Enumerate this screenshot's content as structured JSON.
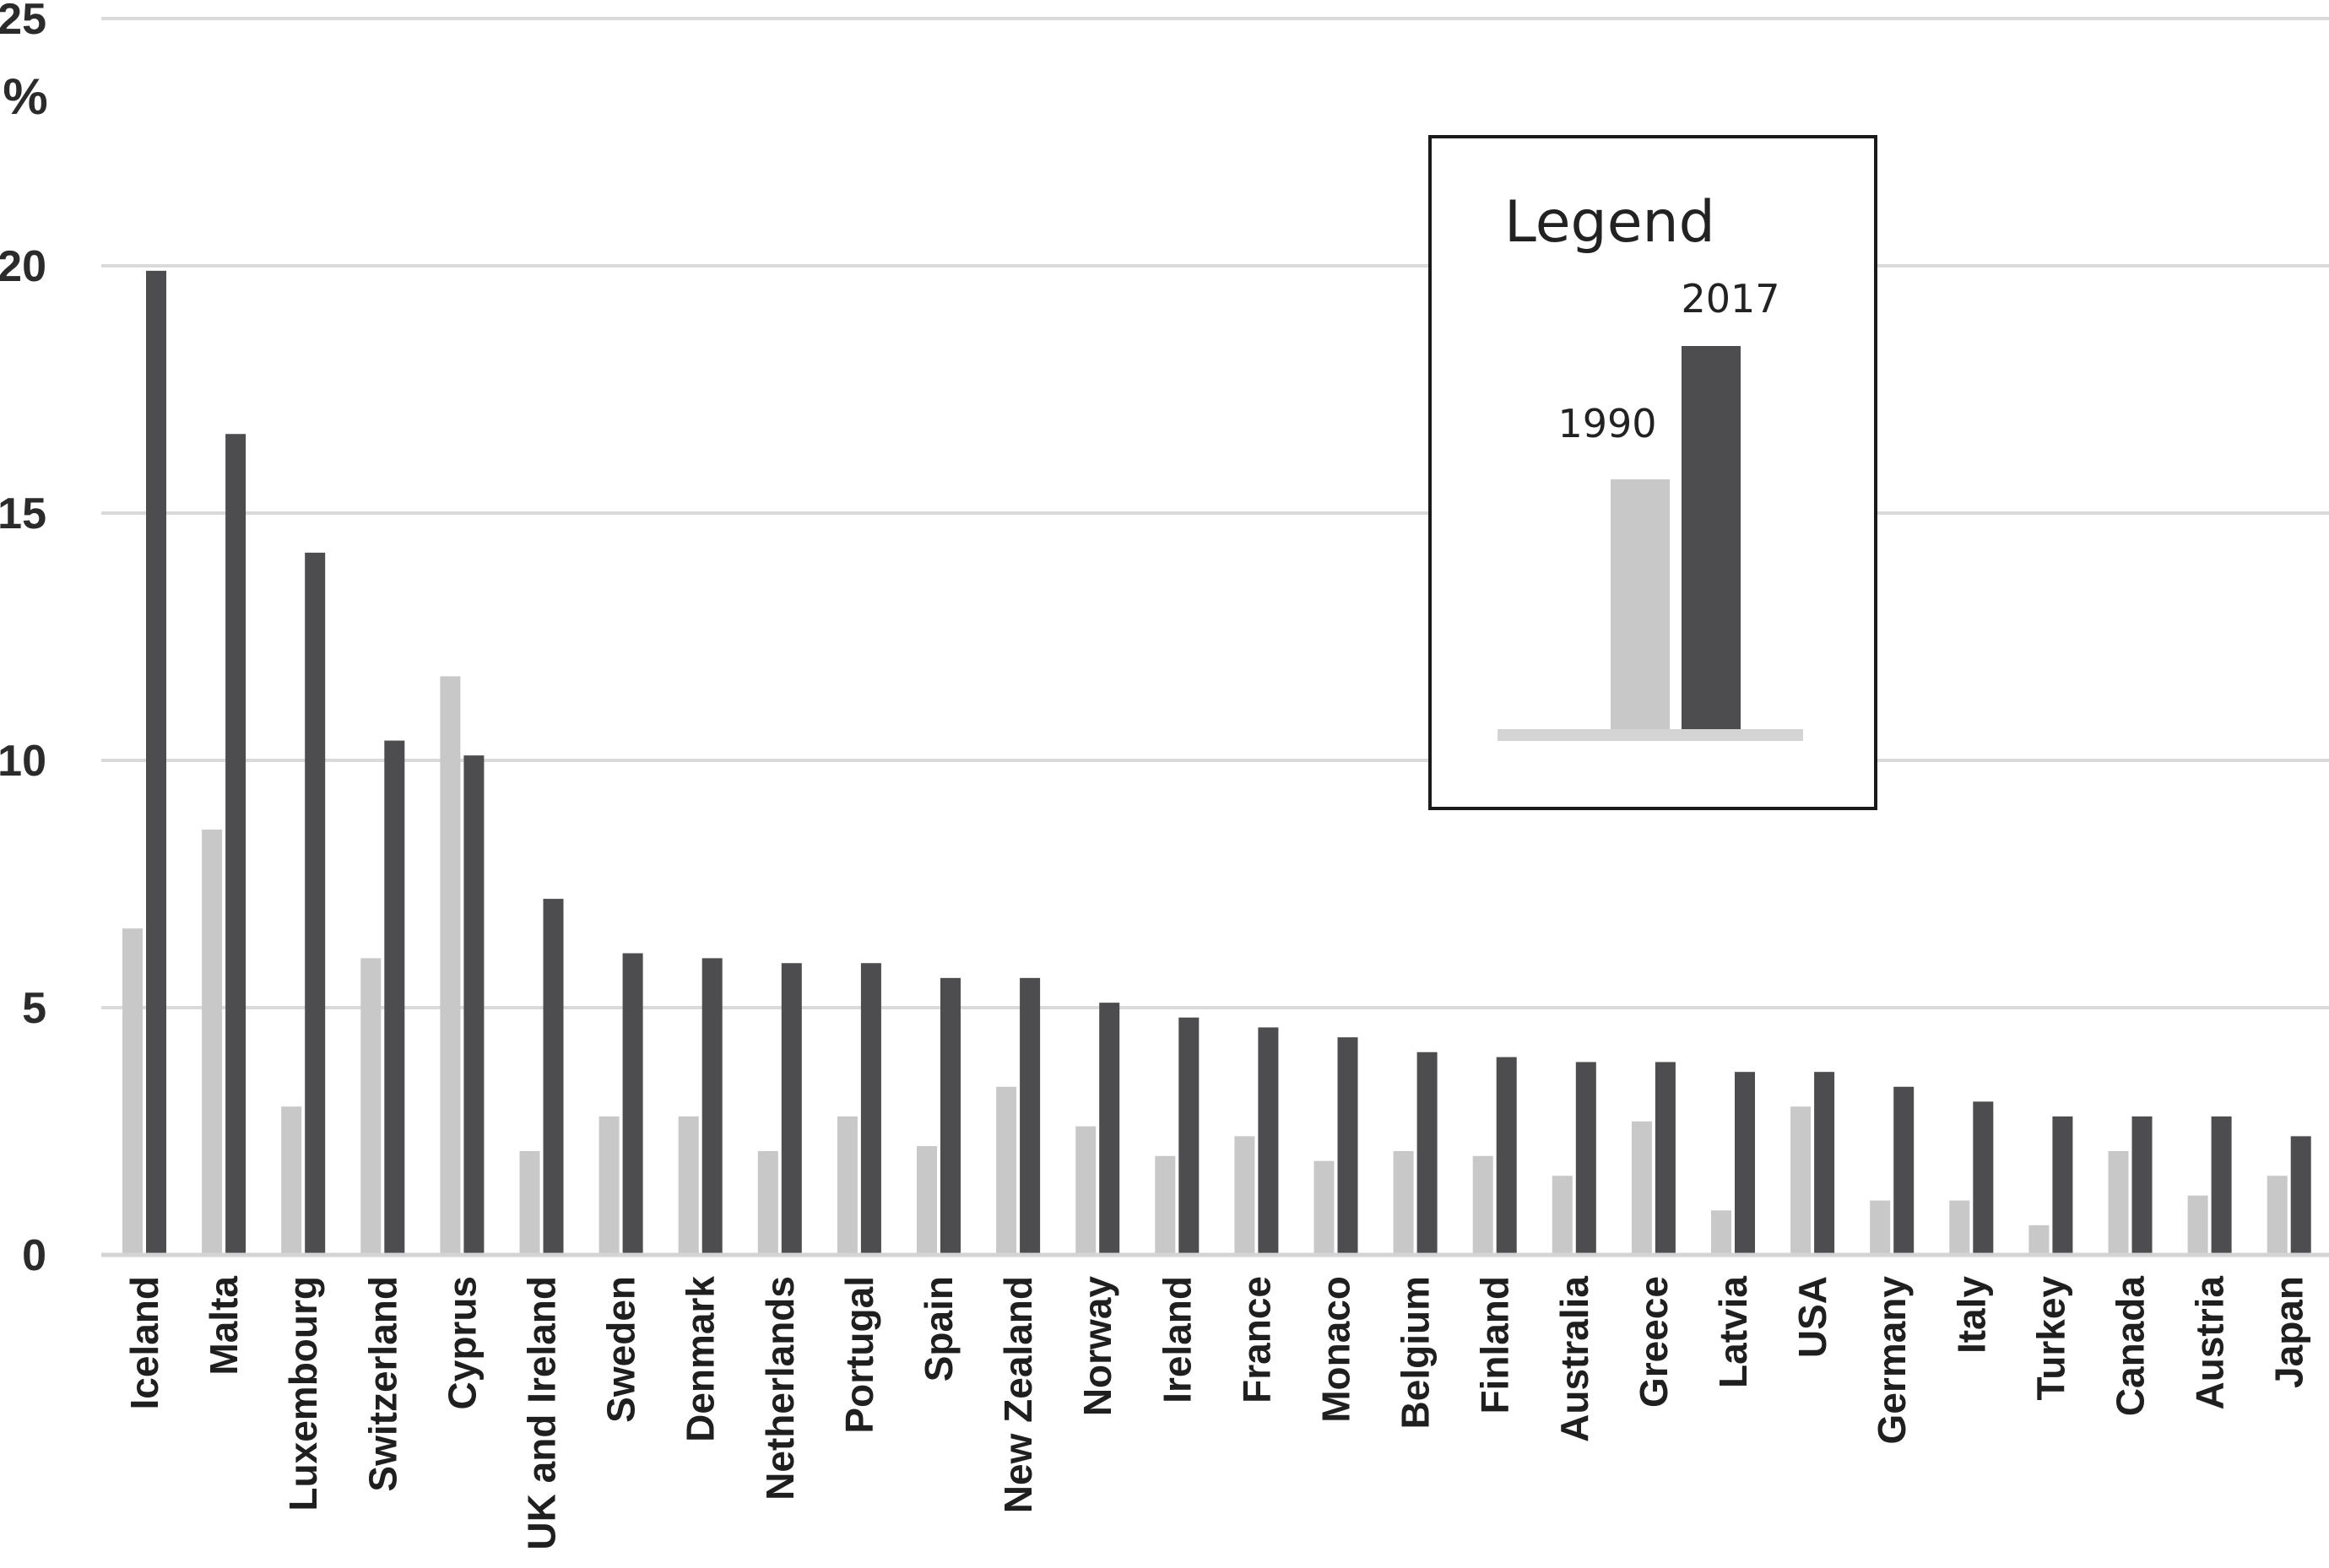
{
  "chart_data": {
    "type": "bar",
    "categories": [
      "Iceland",
      "Malta",
      "Luxembourg",
      "Switzerland",
      "Cyprus",
      "UK and Ireland",
      "Sweden",
      "Denmark",
      "Netherlands",
      "Portugal",
      "Spain",
      "New Zealand",
      "Norway",
      "Ireland",
      "France",
      "Monaco",
      "Belgium",
      "Finland",
      "Australia",
      "Greece",
      "Latvia",
      "USA",
      "Germany",
      "Italy",
      "Turkey",
      "Canada",
      "Austria",
      "Japan"
    ],
    "series": [
      {
        "name": "1990",
        "color": "#c8c8c8",
        "values": [
          6.6,
          8.6,
          3.0,
          6.0,
          11.7,
          2.1,
          2.8,
          2.8,
          2.1,
          2.8,
          2.2,
          3.4,
          2.6,
          2.0,
          2.4,
          1.9,
          2.1,
          2.0,
          1.6,
          2.7,
          0.9,
          3.0,
          1.1,
          1.1,
          0.6,
          2.1,
          1.2,
          1.6
        ]
      },
      {
        "name": "2017",
        "color": "#4d4d4f",
        "values": [
          19.9,
          16.6,
          14.2,
          10.4,
          10.1,
          7.2,
          6.1,
          6.0,
          5.9,
          5.9,
          5.6,
          5.6,
          5.1,
          4.8,
          4.6,
          4.4,
          4.1,
          4.0,
          3.9,
          3.9,
          3.7,
          3.7,
          3.4,
          3.1,
          2.8,
          2.8,
          2.8,
          2.4
        ]
      }
    ],
    "ylim": [
      0,
      25
    ],
    "yticks": [
      "0",
      "5",
      "10",
      "15",
      "20",
      "25"
    ],
    "ylabel": "%",
    "grid": true,
    "legend": {
      "title": "Legend",
      "position": "top-right",
      "labels": [
        "1990",
        "2017"
      ]
    }
  }
}
